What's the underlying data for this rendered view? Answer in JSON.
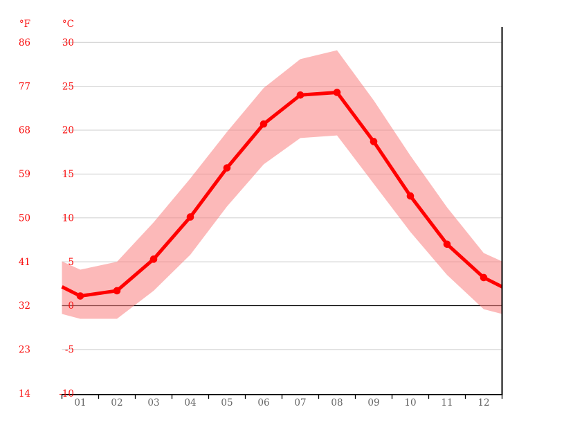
{
  "chart_data": {
    "type": "line",
    "description": "Climate graph: monthly mean temperature (red line with dots) with min/max range band (pink), black zero-degree line",
    "months": [
      "01",
      "02",
      "03",
      "04",
      "05",
      "06",
      "07",
      "08",
      "09",
      "10",
      "11",
      "12"
    ],
    "series": [
      {
        "name": "mean_temperature_c",
        "values": [
          1.1,
          1.7,
          5.3,
          10.1,
          15.7,
          20.7,
          24.0,
          24.3,
          18.7,
          12.5,
          7.0,
          3.2
        ]
      },
      {
        "name": "max_temperature_c",
        "values": [
          4.1,
          5.0,
          9.5,
          14.5,
          19.8,
          24.8,
          28.1,
          29.1,
          23.4,
          17.1,
          11.2,
          6.0
        ]
      },
      {
        "name": "min_temperature_c",
        "values": [
          -1.5,
          -1.5,
          1.7,
          5.8,
          11.3,
          16.1,
          19.1,
          19.4,
          13.9,
          8.4,
          3.5,
          -0.4
        ]
      }
    ],
    "y_axis_celsius": {
      "unit": "°C",
      "ticks": [
        30,
        25,
        20,
        15,
        10,
        5,
        0,
        -5,
        -10
      ]
    },
    "y_axis_fahrenheit": {
      "unit": "°F",
      "ticks": [
        86,
        77,
        68,
        59,
        50,
        41,
        32,
        23,
        14
      ]
    },
    "ylim_c": [
      -10.1,
      31.7
    ],
    "zero_line_c": 0,
    "grid": true,
    "legend": "none",
    "colors": {
      "line": "#ff0000",
      "dot": "#ff0000",
      "band": "#f98080",
      "grid": "#cccccc",
      "axis": "#000000",
      "tick_label": "#f90d0d",
      "month_label": "#666666",
      "background": "#ffffff"
    }
  }
}
